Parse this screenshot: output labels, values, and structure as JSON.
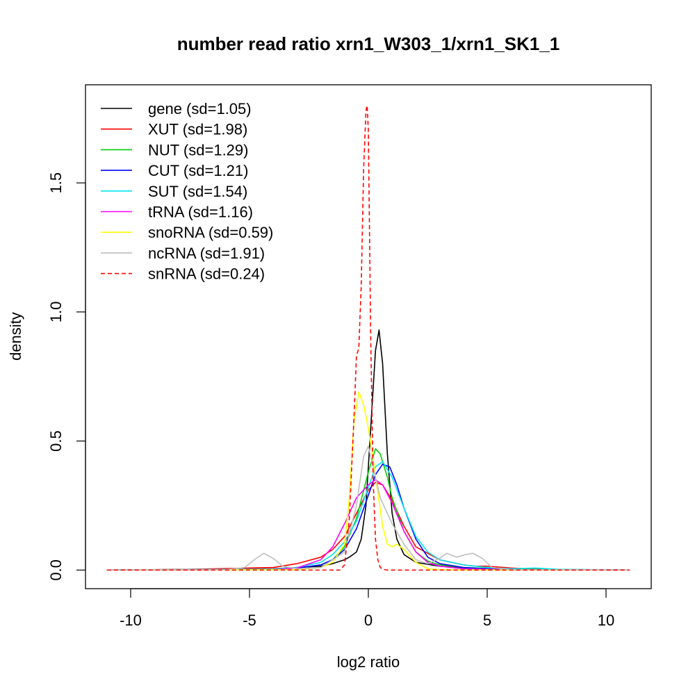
{
  "chart_data": {
    "type": "line",
    "title": "number read ratio xrn1_W303_1/xrn1_SK1_1",
    "xlabel": "log2 ratio",
    "ylabel": "density",
    "xlim": [
      -11.9,
      11.9
    ],
    "ylim": [
      -0.072,
      1.88
    ],
    "xticks": [
      -10,
      -5,
      0,
      5,
      10
    ],
    "xtick_labels": [
      "-10",
      "-5",
      "0",
      "5",
      "10"
    ],
    "yticks": [
      0.0,
      0.5,
      1.0,
      1.5
    ],
    "ytick_labels": [
      "0.0",
      "0.5",
      "1.0",
      "1.5"
    ],
    "grid": false,
    "legend_position": "top-left",
    "series": [
      {
        "name": "gene (sd=1.05)",
        "color": "#000000",
        "dash": "solid",
        "x": [
          -11,
          -4,
          -2,
          -1.5,
          -1,
          -0.8,
          -0.5,
          -0.3,
          -0.1,
          0.1,
          0.3,
          0.45,
          0.6,
          0.8,
          1.0,
          1.2,
          1.5,
          2,
          3,
          4,
          6,
          11
        ],
        "y": [
          0,
          0.005,
          0.015,
          0.025,
          0.04,
          0.05,
          0.07,
          0.12,
          0.25,
          0.55,
          0.85,
          0.93,
          0.8,
          0.45,
          0.22,
          0.12,
          0.06,
          0.03,
          0.015,
          0.008,
          0.003,
          0
        ]
      },
      {
        "name": "XUT (sd=1.98)",
        "color": "#ff0000",
        "dash": "solid",
        "x": [
          -11,
          -8,
          -6,
          -5,
          -4,
          -3,
          -2,
          -1.5,
          -1,
          -0.5,
          0,
          0.3,
          0.6,
          1,
          1.5,
          2,
          3,
          4,
          4.5,
          5,
          6,
          7,
          8,
          11
        ],
        "y": [
          0,
          0.002,
          0.006,
          0.008,
          0.01,
          0.025,
          0.05,
          0.08,
          0.13,
          0.22,
          0.31,
          0.34,
          0.33,
          0.27,
          0.17,
          0.09,
          0.04,
          0.02,
          0.015,
          0.015,
          0.008,
          0.004,
          0.002,
          0
        ]
      },
      {
        "name": "NUT (sd=1.29)",
        "color": "#00cc00",
        "dash": "solid",
        "x": [
          -11,
          -4,
          -3,
          -2,
          -1.5,
          -1,
          -0.5,
          0,
          0.3,
          0.5,
          0.8,
          1,
          1.5,
          2,
          2.5,
          3,
          4,
          6,
          11
        ],
        "y": [
          0,
          0.003,
          0.008,
          0.02,
          0.04,
          0.09,
          0.2,
          0.38,
          0.47,
          0.45,
          0.36,
          0.28,
          0.15,
          0.07,
          0.035,
          0.02,
          0.01,
          0.003,
          0
        ]
      },
      {
        "name": "CUT (sd=1.21)",
        "color": "#0000ff",
        "dash": "solid",
        "x": [
          -11,
          -4,
          -3,
          -2,
          -1.5,
          -1,
          -0.5,
          0,
          0.3,
          0.6,
          0.9,
          1.2,
          1.5,
          2,
          2.5,
          3,
          4,
          5,
          6,
          11
        ],
        "y": [
          0,
          0.003,
          0.008,
          0.02,
          0.04,
          0.08,
          0.16,
          0.29,
          0.37,
          0.41,
          0.4,
          0.33,
          0.24,
          0.12,
          0.05,
          0.025,
          0.01,
          0.005,
          0.002,
          0
        ]
      },
      {
        "name": "SUT (sd=1.54)",
        "color": "#00e5ee",
        "dash": "solid",
        "x": [
          -11,
          -4,
          -3,
          -2,
          -1.5,
          -1,
          -0.5,
          0,
          0.3,
          0.6,
          1,
          1.5,
          2,
          2.5,
          3,
          4,
          5,
          6,
          7,
          8,
          11
        ],
        "y": [
          0,
          0.004,
          0.01,
          0.03,
          0.06,
          0.11,
          0.19,
          0.32,
          0.4,
          0.42,
          0.36,
          0.24,
          0.13,
          0.07,
          0.04,
          0.02,
          0.01,
          0.005,
          0.008,
          0.003,
          0
        ]
      },
      {
        "name": "tRNA (sd=1.16)",
        "color": "#ff00ff",
        "dash": "solid",
        "x": [
          -11,
          -4,
          -3,
          -2,
          -1.5,
          -1,
          -0.5,
          0,
          0.3,
          0.6,
          1,
          1.5,
          2,
          2.5,
          3,
          4,
          6,
          11
        ],
        "y": [
          0,
          0.002,
          0.008,
          0.04,
          0.09,
          0.18,
          0.28,
          0.33,
          0.35,
          0.33,
          0.26,
          0.15,
          0.07,
          0.03,
          0.015,
          0.005,
          0.001,
          0
        ]
      },
      {
        "name": "snoRNA (sd=0.59)",
        "color": "#ffff00",
        "dash": "solid",
        "x": [
          -11,
          -3,
          -2,
          -1.5,
          -1,
          -0.8,
          -0.6,
          -0.4,
          -0.2,
          0,
          0.2,
          0.4,
          0.6,
          0.8,
          1.0,
          1.2,
          1.5,
          2,
          2.5,
          3,
          11
        ],
        "y": [
          0,
          0.002,
          0.01,
          0.03,
          0.1,
          0.28,
          0.58,
          0.69,
          0.64,
          0.55,
          0.43,
          0.3,
          0.17,
          0.1,
          0.09,
          0.1,
          0.08,
          0.03,
          0.005,
          0.001,
          0
        ]
      },
      {
        "name": "ncRNA (sd=1.91)",
        "color": "#bebebe",
        "dash": "solid",
        "x": [
          -11,
          -6,
          -5.2,
          -4.8,
          -4.4,
          -4.0,
          -3.6,
          -3,
          -2,
          -1,
          -0.5,
          -0.2,
          0,
          0.2,
          0.5,
          1,
          1.5,
          2,
          2.5,
          3,
          3.3,
          3.7,
          4.1,
          4.4,
          4.8,
          5.2,
          6,
          11
        ],
        "y": [
          0,
          0.002,
          0.01,
          0.04,
          0.065,
          0.045,
          0.015,
          0.005,
          0.01,
          0.07,
          0.25,
          0.44,
          0.48,
          0.4,
          0.28,
          0.18,
          0.1,
          0.04,
          0.025,
          0.045,
          0.065,
          0.05,
          0.06,
          0.065,
          0.045,
          0.01,
          0.002,
          0
        ]
      },
      {
        "name": "snRNA (sd=0.24)",
        "color": "#ff0000",
        "dash": "dashed",
        "x": [
          -11,
          -1.2,
          -1.0,
          -0.8,
          -0.6,
          -0.5,
          -0.4,
          -0.3,
          -0.2,
          -0.1,
          -0.05,
          0,
          0.05,
          0.1,
          0.2,
          0.3,
          0.4,
          0.5,
          0.6,
          0.8,
          11
        ],
        "y": [
          0,
          0,
          0.02,
          0.2,
          0.6,
          0.83,
          0.86,
          1.1,
          1.55,
          1.78,
          1.8,
          1.7,
          1.3,
          0.9,
          0.35,
          0.12,
          0.04,
          0.01,
          0.003,
          0,
          0
        ]
      }
    ]
  }
}
